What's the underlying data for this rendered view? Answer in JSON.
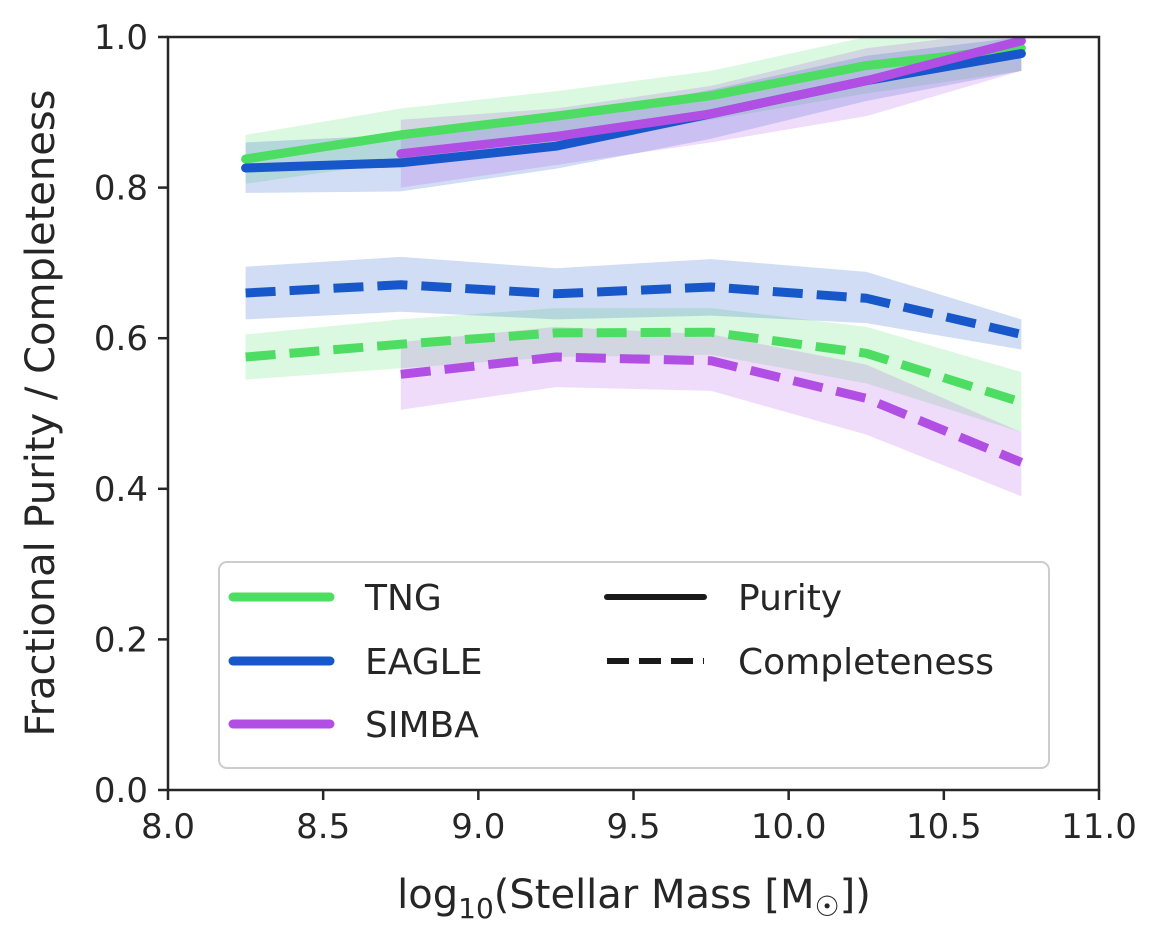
{
  "chart_data": {
    "type": "line",
    "xlabel": "log10(Stellar Mass [M☉])",
    "xlabel_parts": {
      "pre": "log",
      "sub": "10",
      "mid": "(Stellar Mass [M",
      "sun": "☉",
      "post": "])"
    },
    "ylabel": "Fractional Purity / Completeness",
    "xlim": [
      8.0,
      11.0
    ],
    "ylim": [
      0.0,
      1.0
    ],
    "xticks": [
      8.0,
      8.5,
      9.0,
      9.5,
      10.0,
      10.5,
      11.0
    ],
    "xtick_labels": [
      "8.0",
      "8.5",
      "9.0",
      "9.5",
      "10.0",
      "10.5",
      "11.0"
    ],
    "yticks": [
      0.0,
      0.2,
      0.4,
      0.6,
      0.8,
      1.0
    ],
    "ytick_labels": [
      "0.0",
      "0.2",
      "0.4",
      "0.6",
      "0.8",
      "1.0"
    ],
    "grid": false,
    "legend_position": "lower-center",
    "series": [
      {
        "name": "TNG",
        "metric": "Purity",
        "style": "solid",
        "color": "#4cdd62",
        "x": [
          8.25,
          8.75,
          9.25,
          9.75,
          10.25,
          10.75
        ],
        "y": [
          0.838,
          0.87,
          0.895,
          0.922,
          0.962,
          0.985
        ],
        "lower": [
          0.805,
          0.835,
          0.86,
          0.89,
          0.925,
          0.955
        ],
        "upper": [
          0.87,
          0.905,
          0.928,
          0.955,
          1.0,
          1.01
        ]
      },
      {
        "name": "EAGLE",
        "metric": "Purity",
        "style": "solid",
        "color": "#1757c9",
        "x": [
          8.25,
          8.75,
          9.25,
          9.75,
          10.25,
          10.75
        ],
        "y": [
          0.826,
          0.833,
          0.855,
          0.898,
          0.942,
          0.978
        ],
        "lower": [
          0.793,
          0.795,
          0.825,
          0.865,
          0.915,
          0.955
        ],
        "upper": [
          0.86,
          0.87,
          0.89,
          0.93,
          0.975,
          1.0
        ]
      },
      {
        "name": "SIMBA",
        "metric": "Purity",
        "style": "solid",
        "color": "#b14ee4",
        "x": [
          8.75,
          9.25,
          9.75,
          10.25,
          10.75
        ],
        "y": [
          0.845,
          0.868,
          0.898,
          0.942,
          0.995
        ],
        "lower": [
          0.8,
          0.83,
          0.86,
          0.895,
          0.955
        ],
        "upper": [
          0.89,
          0.905,
          0.935,
          0.985,
          1.01
        ]
      },
      {
        "name": "TNG",
        "metric": "Completeness",
        "style": "dashed",
        "color": "#4cdd62",
        "x": [
          8.25,
          8.75,
          9.25,
          9.75,
          10.25,
          10.75
        ],
        "y": [
          0.575,
          0.592,
          0.607,
          0.608,
          0.58,
          0.515
        ],
        "lower": [
          0.545,
          0.56,
          0.575,
          0.578,
          0.54,
          0.475
        ],
        "upper": [
          0.605,
          0.625,
          0.64,
          0.64,
          0.615,
          0.555
        ]
      },
      {
        "name": "EAGLE",
        "metric": "Completeness",
        "style": "dashed",
        "color": "#1757c9",
        "x": [
          8.25,
          8.75,
          9.25,
          9.75,
          10.25,
          10.75
        ],
        "y": [
          0.66,
          0.671,
          0.659,
          0.668,
          0.653,
          0.605
        ],
        "lower": [
          0.625,
          0.635,
          0.625,
          0.63,
          0.62,
          0.585
        ],
        "upper": [
          0.695,
          0.708,
          0.693,
          0.705,
          0.688,
          0.625
        ]
      },
      {
        "name": "SIMBA",
        "metric": "Completeness",
        "style": "dashed",
        "color": "#b14ee4",
        "x": [
          8.75,
          9.25,
          9.75,
          10.25,
          10.75
        ],
        "y": [
          0.552,
          0.575,
          0.57,
          0.52,
          0.435
        ],
        "lower": [
          0.505,
          0.535,
          0.53,
          0.472,
          0.39
        ],
        "upper": [
          0.595,
          0.615,
          0.605,
          0.565,
          0.475
        ]
      }
    ],
    "legend": {
      "simulations": [
        {
          "label": "TNG",
          "color": "#4cdd62"
        },
        {
          "label": "EAGLE",
          "color": "#1757c9"
        },
        {
          "label": "SIMBA",
          "color": "#b14ee4"
        }
      ],
      "metrics": [
        {
          "label": "Purity",
          "style": "solid"
        },
        {
          "label": "Completeness",
          "style": "dashed"
        }
      ]
    }
  }
}
